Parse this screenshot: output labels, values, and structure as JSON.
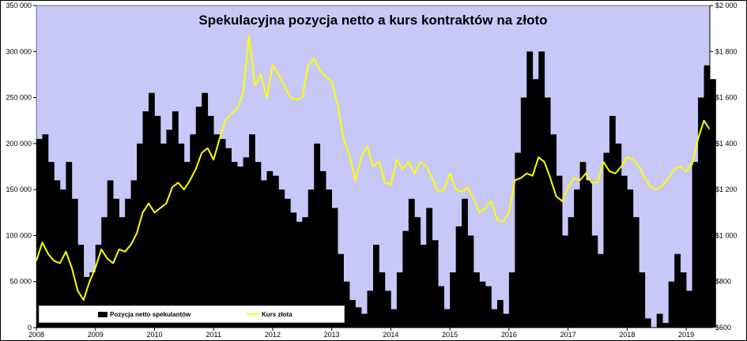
{
  "chart_data": {
    "type": "bar+line",
    "title": "Spekulacyjna pozycja netto a kurs kontraktów na złoto",
    "plot_background": "#c8c8f8",
    "bar_color": "#000000",
    "line_color": "#ffff00",
    "y_left": {
      "ylim": [
        0,
        350000
      ],
      "ticks": [
        0,
        50000,
        100000,
        150000,
        200000,
        250000,
        300000,
        350000
      ],
      "tick_labels": [
        "0",
        "50 000",
        "100 000",
        "150 000",
        "200 000",
        "250 000",
        "300 000",
        "350 000"
      ]
    },
    "y_right": {
      "ylim": [
        600,
        2000
      ],
      "ticks": [
        600,
        800,
        1000,
        1200,
        1400,
        1600,
        1800,
        2000
      ],
      "tick_labels": [
        "$600",
        "$800",
        "$1 000",
        "$1 200",
        "$1 400",
        "$1 600",
        "$1 800",
        "$2 000"
      ]
    },
    "x_axis": {
      "xlim": [
        2008.0,
        2019.4
      ],
      "tick_labels": [
        "2008",
        "2009",
        "2010",
        "2011",
        "2012",
        "2013",
        "2014",
        "2015",
        "2016",
        "2017",
        "2018",
        "2019"
      ]
    },
    "series": [
      {
        "name": "Pozycja netto spekulantów",
        "kind": "bar",
        "axis": "left",
        "points": [
          [
            2008.0,
            205000
          ],
          [
            2008.1,
            210000
          ],
          [
            2008.2,
            180000
          ],
          [
            2008.3,
            160000
          ],
          [
            2008.4,
            150000
          ],
          [
            2008.5,
            180000
          ],
          [
            2008.6,
            140000
          ],
          [
            2008.7,
            90000
          ],
          [
            2008.8,
            55000
          ],
          [
            2008.9,
            60000
          ],
          [
            2009.0,
            90000
          ],
          [
            2009.1,
            120000
          ],
          [
            2009.2,
            160000
          ],
          [
            2009.3,
            140000
          ],
          [
            2009.4,
            120000
          ],
          [
            2009.5,
            140000
          ],
          [
            2009.6,
            160000
          ],
          [
            2009.7,
            200000
          ],
          [
            2009.8,
            235000
          ],
          [
            2009.9,
            255000
          ],
          [
            2010.0,
            230000
          ],
          [
            2010.1,
            200000
          ],
          [
            2010.2,
            215000
          ],
          [
            2010.3,
            235000
          ],
          [
            2010.4,
            200000
          ],
          [
            2010.5,
            180000
          ],
          [
            2010.6,
            210000
          ],
          [
            2010.7,
            240000
          ],
          [
            2010.8,
            255000
          ],
          [
            2010.9,
            230000
          ],
          [
            2011.0,
            210000
          ],
          [
            2011.1,
            205000
          ],
          [
            2011.2,
            195000
          ],
          [
            2011.3,
            180000
          ],
          [
            2011.4,
            175000
          ],
          [
            2011.5,
            185000
          ],
          [
            2011.6,
            210000
          ],
          [
            2011.7,
            180000
          ],
          [
            2011.8,
            160000
          ],
          [
            2011.9,
            170000
          ],
          [
            2012.0,
            165000
          ],
          [
            2012.1,
            150000
          ],
          [
            2012.2,
            140000
          ],
          [
            2012.3,
            125000
          ],
          [
            2012.4,
            115000
          ],
          [
            2012.5,
            120000
          ],
          [
            2012.6,
            150000
          ],
          [
            2012.7,
            200000
          ],
          [
            2012.8,
            170000
          ],
          [
            2012.9,
            150000
          ],
          [
            2013.0,
            130000
          ],
          [
            2013.1,
            80000
          ],
          [
            2013.2,
            50000
          ],
          [
            2013.3,
            30000
          ],
          [
            2013.4,
            22000
          ],
          [
            2013.5,
            15000
          ],
          [
            2013.6,
            40000
          ],
          [
            2013.7,
            90000
          ],
          [
            2013.8,
            60000
          ],
          [
            2013.9,
            40000
          ],
          [
            2014.0,
            20000
          ],
          [
            2014.1,
            60000
          ],
          [
            2014.2,
            105000
          ],
          [
            2014.3,
            140000
          ],
          [
            2014.4,
            120000
          ],
          [
            2014.5,
            90000
          ],
          [
            2014.6,
            130000
          ],
          [
            2014.7,
            95000
          ],
          [
            2014.8,
            45000
          ],
          [
            2014.9,
            20000
          ],
          [
            2015.0,
            60000
          ],
          [
            2015.1,
            110000
          ],
          [
            2015.2,
            140000
          ],
          [
            2015.3,
            100000
          ],
          [
            2015.4,
            60000
          ],
          [
            2015.5,
            50000
          ],
          [
            2015.6,
            45000
          ],
          [
            2015.7,
            20000
          ],
          [
            2015.8,
            30000
          ],
          [
            2015.9,
            15000
          ],
          [
            2016.0,
            60000
          ],
          [
            2016.1,
            190000
          ],
          [
            2016.2,
            250000
          ],
          [
            2016.3,
            300000
          ],
          [
            2016.4,
            270000
          ],
          [
            2016.5,
            300000
          ],
          [
            2016.6,
            250000
          ],
          [
            2016.7,
            210000
          ],
          [
            2016.8,
            165000
          ],
          [
            2016.9,
            100000
          ],
          [
            2017.0,
            120000
          ],
          [
            2017.1,
            150000
          ],
          [
            2017.2,
            180000
          ],
          [
            2017.3,
            160000
          ],
          [
            2017.4,
            100000
          ],
          [
            2017.5,
            80000
          ],
          [
            2017.6,
            190000
          ],
          [
            2017.7,
            230000
          ],
          [
            2017.8,
            200000
          ],
          [
            2017.9,
            165000
          ],
          [
            2018.0,
            150000
          ],
          [
            2018.1,
            120000
          ],
          [
            2018.2,
            60000
          ],
          [
            2018.3,
            10000
          ],
          [
            2018.4,
            0
          ],
          [
            2018.5,
            15000
          ],
          [
            2018.6,
            5000
          ],
          [
            2018.7,
            50000
          ],
          [
            2018.8,
            80000
          ],
          [
            2018.9,
            60000
          ],
          [
            2019.0,
            40000
          ],
          [
            2019.1,
            180000
          ],
          [
            2019.2,
            250000
          ],
          [
            2019.3,
            285000
          ],
          [
            2019.4,
            270000
          ]
        ]
      },
      {
        "name": "Kurs złota",
        "kind": "line",
        "axis": "right",
        "points": [
          [
            2008.0,
            890
          ],
          [
            2008.1,
            970
          ],
          [
            2008.2,
            920
          ],
          [
            2008.3,
            890
          ],
          [
            2008.4,
            880
          ],
          [
            2008.5,
            930
          ],
          [
            2008.6,
            860
          ],
          [
            2008.7,
            760
          ],
          [
            2008.8,
            720
          ],
          [
            2008.9,
            800
          ],
          [
            2009.0,
            860
          ],
          [
            2009.1,
            940
          ],
          [
            2009.2,
            900
          ],
          [
            2009.3,
            880
          ],
          [
            2009.4,
            940
          ],
          [
            2009.5,
            930
          ],
          [
            2009.6,
            960
          ],
          [
            2009.7,
            1010
          ],
          [
            2009.8,
            1100
          ],
          [
            2009.9,
            1140
          ],
          [
            2010.0,
            1100
          ],
          [
            2010.1,
            1120
          ],
          [
            2010.2,
            1140
          ],
          [
            2010.3,
            1210
          ],
          [
            2010.4,
            1230
          ],
          [
            2010.5,
            1200
          ],
          [
            2010.6,
            1240
          ],
          [
            2010.7,
            1290
          ],
          [
            2010.8,
            1360
          ],
          [
            2010.9,
            1380
          ],
          [
            2011.0,
            1330
          ],
          [
            2011.1,
            1420
          ],
          [
            2011.2,
            1500
          ],
          [
            2011.3,
            1530
          ],
          [
            2011.4,
            1550
          ],
          [
            2011.5,
            1620
          ],
          [
            2011.6,
            1870
          ],
          [
            2011.7,
            1650
          ],
          [
            2011.8,
            1700
          ],
          [
            2011.9,
            1600
          ],
          [
            2012.0,
            1740
          ],
          [
            2012.1,
            1700
          ],
          [
            2012.2,
            1650
          ],
          [
            2012.3,
            1600
          ],
          [
            2012.4,
            1590
          ],
          [
            2012.5,
            1600
          ],
          [
            2012.6,
            1740
          ],
          [
            2012.7,
            1770
          ],
          [
            2012.8,
            1720
          ],
          [
            2012.9,
            1690
          ],
          [
            2013.0,
            1670
          ],
          [
            2013.1,
            1570
          ],
          [
            2013.2,
            1420
          ],
          [
            2013.3,
            1350
          ],
          [
            2013.4,
            1240
          ],
          [
            2013.5,
            1340
          ],
          [
            2013.6,
            1390
          ],
          [
            2013.7,
            1300
          ],
          [
            2013.8,
            1320
          ],
          [
            2013.9,
            1230
          ],
          [
            2014.0,
            1220
          ],
          [
            2014.1,
            1330
          ],
          [
            2014.2,
            1290
          ],
          [
            2014.3,
            1320
          ],
          [
            2014.4,
            1270
          ],
          [
            2014.5,
            1320
          ],
          [
            2014.6,
            1300
          ],
          [
            2014.7,
            1250
          ],
          [
            2014.8,
            1190
          ],
          [
            2014.9,
            1200
          ],
          [
            2015.0,
            1270
          ],
          [
            2015.1,
            1200
          ],
          [
            2015.2,
            1190
          ],
          [
            2015.3,
            1210
          ],
          [
            2015.4,
            1160
          ],
          [
            2015.5,
            1100
          ],
          [
            2015.6,
            1120
          ],
          [
            2015.7,
            1150
          ],
          [
            2015.8,
            1070
          ],
          [
            2015.9,
            1060
          ],
          [
            2016.0,
            1100
          ],
          [
            2016.1,
            1240
          ],
          [
            2016.2,
            1250
          ],
          [
            2016.3,
            1270
          ],
          [
            2016.4,
            1260
          ],
          [
            2016.5,
            1340
          ],
          [
            2016.6,
            1320
          ],
          [
            2016.7,
            1250
          ],
          [
            2016.8,
            1170
          ],
          [
            2016.9,
            1150
          ],
          [
            2017.0,
            1210
          ],
          [
            2017.1,
            1250
          ],
          [
            2017.2,
            1240
          ],
          [
            2017.3,
            1270
          ],
          [
            2017.4,
            1230
          ],
          [
            2017.5,
            1230
          ],
          [
            2017.6,
            1320
          ],
          [
            2017.7,
            1280
          ],
          [
            2017.8,
            1270
          ],
          [
            2017.9,
            1300
          ],
          [
            2018.0,
            1340
          ],
          [
            2018.1,
            1330
          ],
          [
            2018.2,
            1300
          ],
          [
            2018.3,
            1250
          ],
          [
            2018.4,
            1210
          ],
          [
            2018.5,
            1200
          ],
          [
            2018.6,
            1220
          ],
          [
            2018.7,
            1250
          ],
          [
            2018.8,
            1290
          ],
          [
            2018.9,
            1300
          ],
          [
            2019.0,
            1280
          ],
          [
            2019.1,
            1310
          ],
          [
            2019.2,
            1420
          ],
          [
            2019.3,
            1500
          ],
          [
            2019.4,
            1460
          ]
        ]
      }
    ]
  }
}
